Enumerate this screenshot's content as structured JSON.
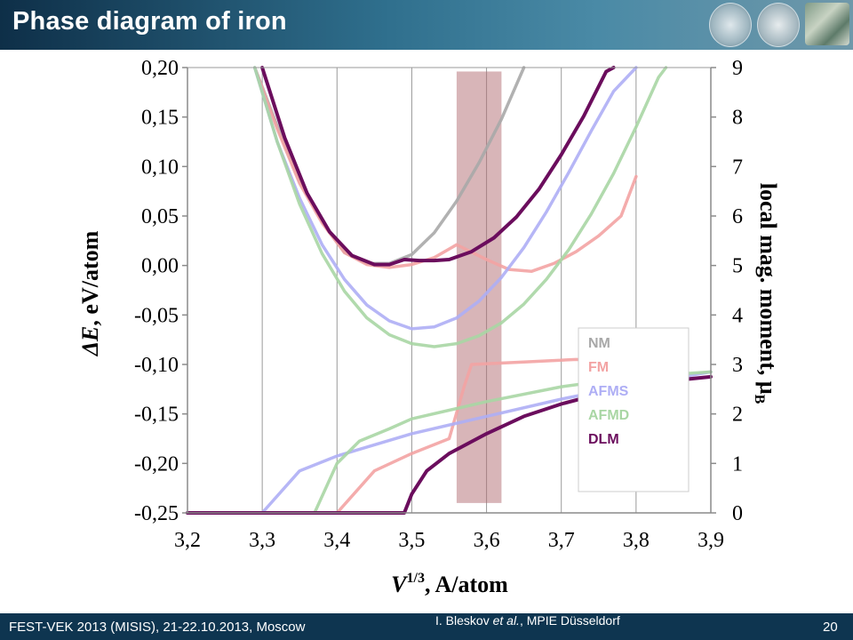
{
  "header": {
    "title": "Phase diagram of iron",
    "logos": [
      "mpg-logo",
      "misis-logo",
      "photo-logo"
    ]
  },
  "footer": {
    "left": "FEST-VEK 2013 (MISIS), 21-22.10.2013, Moscow",
    "author_prefix": "I. Bleskov ",
    "author_etal": "et al.",
    "author_suffix": ", MPIE Düsseldorf",
    "page": "20"
  },
  "chart_data": {
    "type": "line",
    "title": "",
    "xlabel_main": "V",
    "xlabel_sup": "1/3",
    "xlabel_rest": ", A/atom",
    "ylabel_main": "ΔE",
    "ylabel_rest": ", eV/atom",
    "y2label": "local mag. moment, μ",
    "y2label_sub": "B",
    "xlim": [
      3.2,
      3.9
    ],
    "ylim": [
      -0.25,
      0.2
    ],
    "y2lim": [
      0,
      9
    ],
    "x_ticks": [
      3.2,
      3.3,
      3.4,
      3.5,
      3.6,
      3.7,
      3.8,
      3.9
    ],
    "x_tick_labels": [
      "3,2",
      "3,3",
      "3,4",
      "3,5",
      "3,6",
      "3,7",
      "3,8",
      "3,9"
    ],
    "y_ticks": [
      0.2,
      0.15,
      0.1,
      0.05,
      0.0,
      -0.05,
      -0.1,
      -0.15,
      -0.2,
      -0.25
    ],
    "y_tick_labels": [
      "0,20",
      "0,15",
      "0,10",
      "0,05",
      "0,00",
      "-0,05",
      "-0,10",
      "-0,15",
      "-0,20",
      "-0,25"
    ],
    "y2_ticks": [
      9,
      8,
      7,
      6,
      5,
      4,
      3,
      2,
      1,
      0
    ],
    "y2_tick_labels": [
      "9",
      "8",
      "7",
      "6",
      "5",
      "4",
      "3",
      "2",
      "1",
      "0"
    ],
    "grid": "vertical",
    "legend_position": "lower-right",
    "highlight_band": {
      "x_range": [
        3.56,
        3.62
      ],
      "y_range": [
        -0.24,
        0.196
      ],
      "color": "#b26b72"
    },
    "series": [
      {
        "name": "NM",
        "color": "#a8a8a8",
        "energy": [
          [
            3.29,
            0.2
          ],
          [
            3.32,
            0.141
          ],
          [
            3.35,
            0.086
          ],
          [
            3.38,
            0.045
          ],
          [
            3.41,
            0.013
          ],
          [
            3.44,
            0.002
          ],
          [
            3.47,
            0.002
          ],
          [
            3.5,
            0.011
          ],
          [
            3.53,
            0.033
          ],
          [
            3.56,
            0.065
          ],
          [
            3.59,
            0.104
          ],
          [
            3.62,
            0.148
          ],
          [
            3.65,
            0.2
          ]
        ],
        "moment": []
      },
      {
        "name": "FM",
        "color": "#f3a3a3",
        "energy": [
          [
            3.29,
            0.2
          ],
          [
            3.32,
            0.138
          ],
          [
            3.35,
            0.083
          ],
          [
            3.38,
            0.043
          ],
          [
            3.41,
            0.013
          ],
          [
            3.44,
            0.001
          ],
          [
            3.47,
            -0.002
          ],
          [
            3.5,
            0.001
          ],
          [
            3.53,
            0.008
          ],
          [
            3.56,
            0.021
          ],
          [
            3.6,
            0.006
          ],
          [
            3.63,
            -0.004
          ],
          [
            3.66,
            -0.006
          ],
          [
            3.69,
            0.002
          ],
          [
            3.72,
            0.014
          ],
          [
            3.75,
            0.03
          ],
          [
            3.78,
            0.05
          ],
          [
            3.8,
            0.09
          ]
        ],
        "moment": [
          [
            3.2,
            0
          ],
          [
            3.4,
            0
          ],
          [
            3.45,
            0.85
          ],
          [
            3.5,
            1.2
          ],
          [
            3.55,
            1.5
          ],
          [
            3.57,
            2.55
          ],
          [
            3.58,
            3.0
          ],
          [
            3.65,
            3.05
          ],
          [
            3.72,
            3.1
          ],
          [
            3.8,
            3.05
          ]
        ]
      },
      {
        "name": "AFMS",
        "color": "#aeaef5",
        "energy": [
          [
            3.29,
            0.2
          ],
          [
            3.32,
            0.125
          ],
          [
            3.35,
            0.068
          ],
          [
            3.38,
            0.021
          ],
          [
            3.41,
            -0.014
          ],
          [
            3.44,
            -0.04
          ],
          [
            3.47,
            -0.056
          ],
          [
            3.5,
            -0.064
          ],
          [
            3.53,
            -0.062
          ],
          [
            3.56,
            -0.053
          ],
          [
            3.59,
            -0.036
          ],
          [
            3.62,
            -0.012
          ],
          [
            3.65,
            0.018
          ],
          [
            3.68,
            0.054
          ],
          [
            3.71,
            0.094
          ],
          [
            3.74,
            0.136
          ],
          [
            3.77,
            0.176
          ],
          [
            3.8,
            0.2
          ]
        ],
        "moment": [
          [
            3.2,
            0
          ],
          [
            3.3,
            0
          ],
          [
            3.35,
            0.85
          ],
          [
            3.4,
            1.15
          ],
          [
            3.5,
            1.6
          ],
          [
            3.6,
            1.95
          ],
          [
            3.7,
            2.3
          ],
          [
            3.8,
            2.6
          ],
          [
            3.9,
            2.85
          ]
        ]
      },
      {
        "name": "AFMD",
        "color": "#a9d6a4",
        "energy": [
          [
            3.29,
            0.2
          ],
          [
            3.32,
            0.125
          ],
          [
            3.35,
            0.062
          ],
          [
            3.38,
            0.012
          ],
          [
            3.41,
            -0.026
          ],
          [
            3.44,
            -0.053
          ],
          [
            3.47,
            -0.07
          ],
          [
            3.5,
            -0.079
          ],
          [
            3.53,
            -0.082
          ],
          [
            3.56,
            -0.079
          ],
          [
            3.59,
            -0.071
          ],
          [
            3.62,
            -0.058
          ],
          [
            3.65,
            -0.039
          ],
          [
            3.68,
            -0.014
          ],
          [
            3.71,
            0.016
          ],
          [
            3.74,
            0.052
          ],
          [
            3.77,
            0.093
          ],
          [
            3.8,
            0.14
          ],
          [
            3.83,
            0.19
          ],
          [
            3.84,
            0.2
          ]
        ],
        "moment": [
          [
            3.2,
            0
          ],
          [
            3.37,
            0
          ],
          [
            3.4,
            1.0
          ],
          [
            3.43,
            1.45
          ],
          [
            3.47,
            1.7
          ],
          [
            3.5,
            1.9
          ],
          [
            3.6,
            2.25
          ],
          [
            3.7,
            2.55
          ],
          [
            3.8,
            2.75
          ],
          [
            3.9,
            2.85
          ]
        ]
      },
      {
        "name": "DLM",
        "color": "#6b0d5d",
        "energy": [
          [
            3.3,
            0.2
          ],
          [
            3.33,
            0.129
          ],
          [
            3.36,
            0.073
          ],
          [
            3.39,
            0.034
          ],
          [
            3.42,
            0.01
          ],
          [
            3.45,
            0.001
          ],
          [
            3.47,
            0.001
          ],
          [
            3.49,
            0.006
          ],
          [
            3.51,
            0.005
          ],
          [
            3.53,
            0.005
          ],
          [
            3.55,
            0.006
          ],
          [
            3.58,
            0.014
          ],
          [
            3.61,
            0.028
          ],
          [
            3.64,
            0.049
          ],
          [
            3.67,
            0.077
          ],
          [
            3.7,
            0.112
          ],
          [
            3.73,
            0.151
          ],
          [
            3.76,
            0.196
          ],
          [
            3.77,
            0.2
          ]
        ],
        "moment": [
          [
            3.2,
            0
          ],
          [
            3.49,
            0
          ],
          [
            3.5,
            0.38
          ],
          [
            3.52,
            0.85
          ],
          [
            3.55,
            1.2
          ],
          [
            3.6,
            1.6
          ],
          [
            3.65,
            1.95
          ],
          [
            3.7,
            2.2
          ],
          [
            3.8,
            2.6
          ],
          [
            3.9,
            2.75
          ]
        ]
      }
    ]
  }
}
